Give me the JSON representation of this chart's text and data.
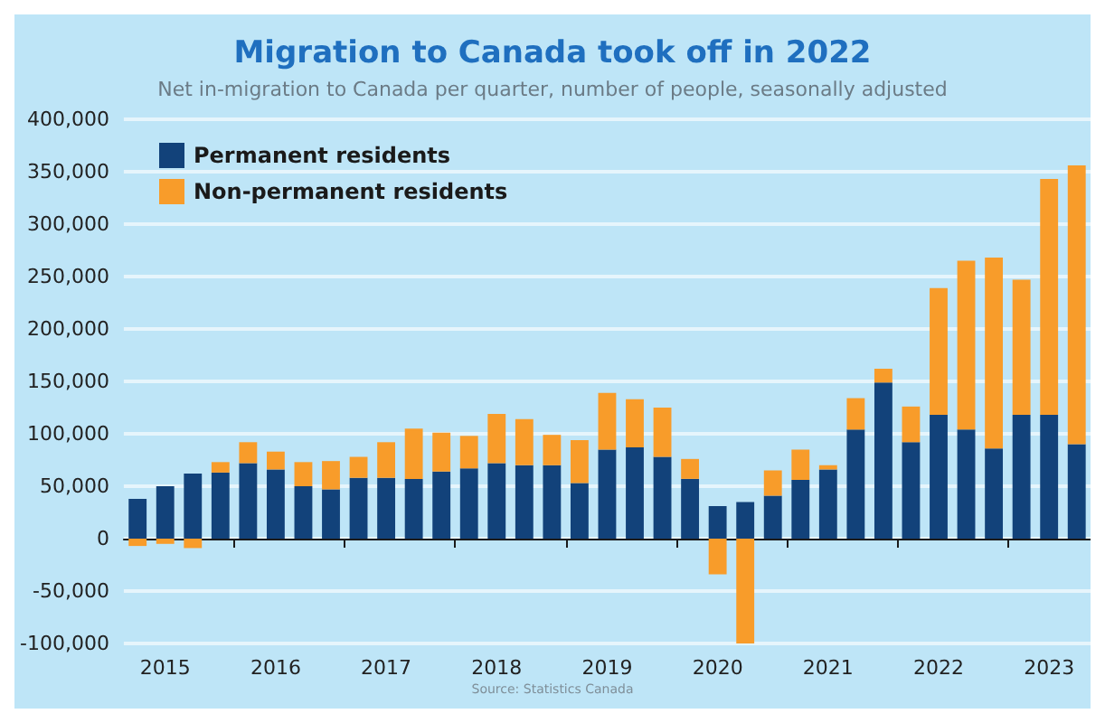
{
  "chart_data": {
    "type": "bar",
    "title": "Migration to Canada took off in 2022",
    "subtitle": "Net in-migration to Canada per quarter, number of people, seasonally adjusted",
    "categories": [
      null,
      "2015",
      null,
      null,
      null,
      "2016",
      null,
      null,
      null,
      "2017",
      null,
      null,
      null,
      "2018",
      null,
      null,
      null,
      "2019",
      null,
      null,
      null,
      "2020",
      null,
      null,
      null,
      "2021",
      null,
      null,
      null,
      "2022",
      null,
      null,
      null,
      "2023",
      null
    ],
    "stacked": true,
    "series": [
      {
        "name": "Permanent residents",
        "color": "#12427a",
        "values": [
          38000,
          50000,
          62000,
          63000,
          72000,
          66000,
          50000,
          47000,
          58000,
          58000,
          57000,
          64000,
          67000,
          72000,
          70000,
          70000,
          53000,
          85000,
          87000,
          78000,
          57000,
          31000,
          35000,
          41000,
          56000,
          66000,
          104000,
          149000,
          92000,
          118000,
          104000,
          86000,
          118000,
          118000,
          90000
        ]
      },
      {
        "name": "Non-permanent residents",
        "color": "#f89c2a",
        "values": [
          -7000,
          -5000,
          -9000,
          10000,
          20000,
          17000,
          23000,
          27000,
          20000,
          34000,
          48000,
          37000,
          31000,
          47000,
          44000,
          29000,
          41000,
          54000,
          46000,
          47000,
          19000,
          -34000,
          -100000,
          24000,
          29000,
          4000,
          30000,
          13000,
          34000,
          121000,
          161000,
          182000,
          129000,
          225000,
          266000
        ]
      }
    ],
    "ylim": [
      -100000,
      400000
    ],
    "yticks": [
      {
        "value": -100000,
        "label": "-100,000"
      },
      {
        "value": -50000,
        "label": "-50,000"
      },
      {
        "value": 0,
        "label": "0"
      },
      {
        "value": 50000,
        "label": "50,000"
      },
      {
        "value": 100000,
        "label": "100,000"
      },
      {
        "value": 150000,
        "label": "150,000"
      },
      {
        "value": 200000,
        "label": "200,000"
      },
      {
        "value": 250000,
        "label": "250,000"
      },
      {
        "value": 300000,
        "label": "300,000"
      },
      {
        "value": 350000,
        "label": "350,000"
      },
      {
        "value": 400000,
        "label": "400,000"
      }
    ],
    "grid": "y",
    "legend": "top left",
    "annotations": [
      "Source: Statistics Canada"
    ]
  }
}
